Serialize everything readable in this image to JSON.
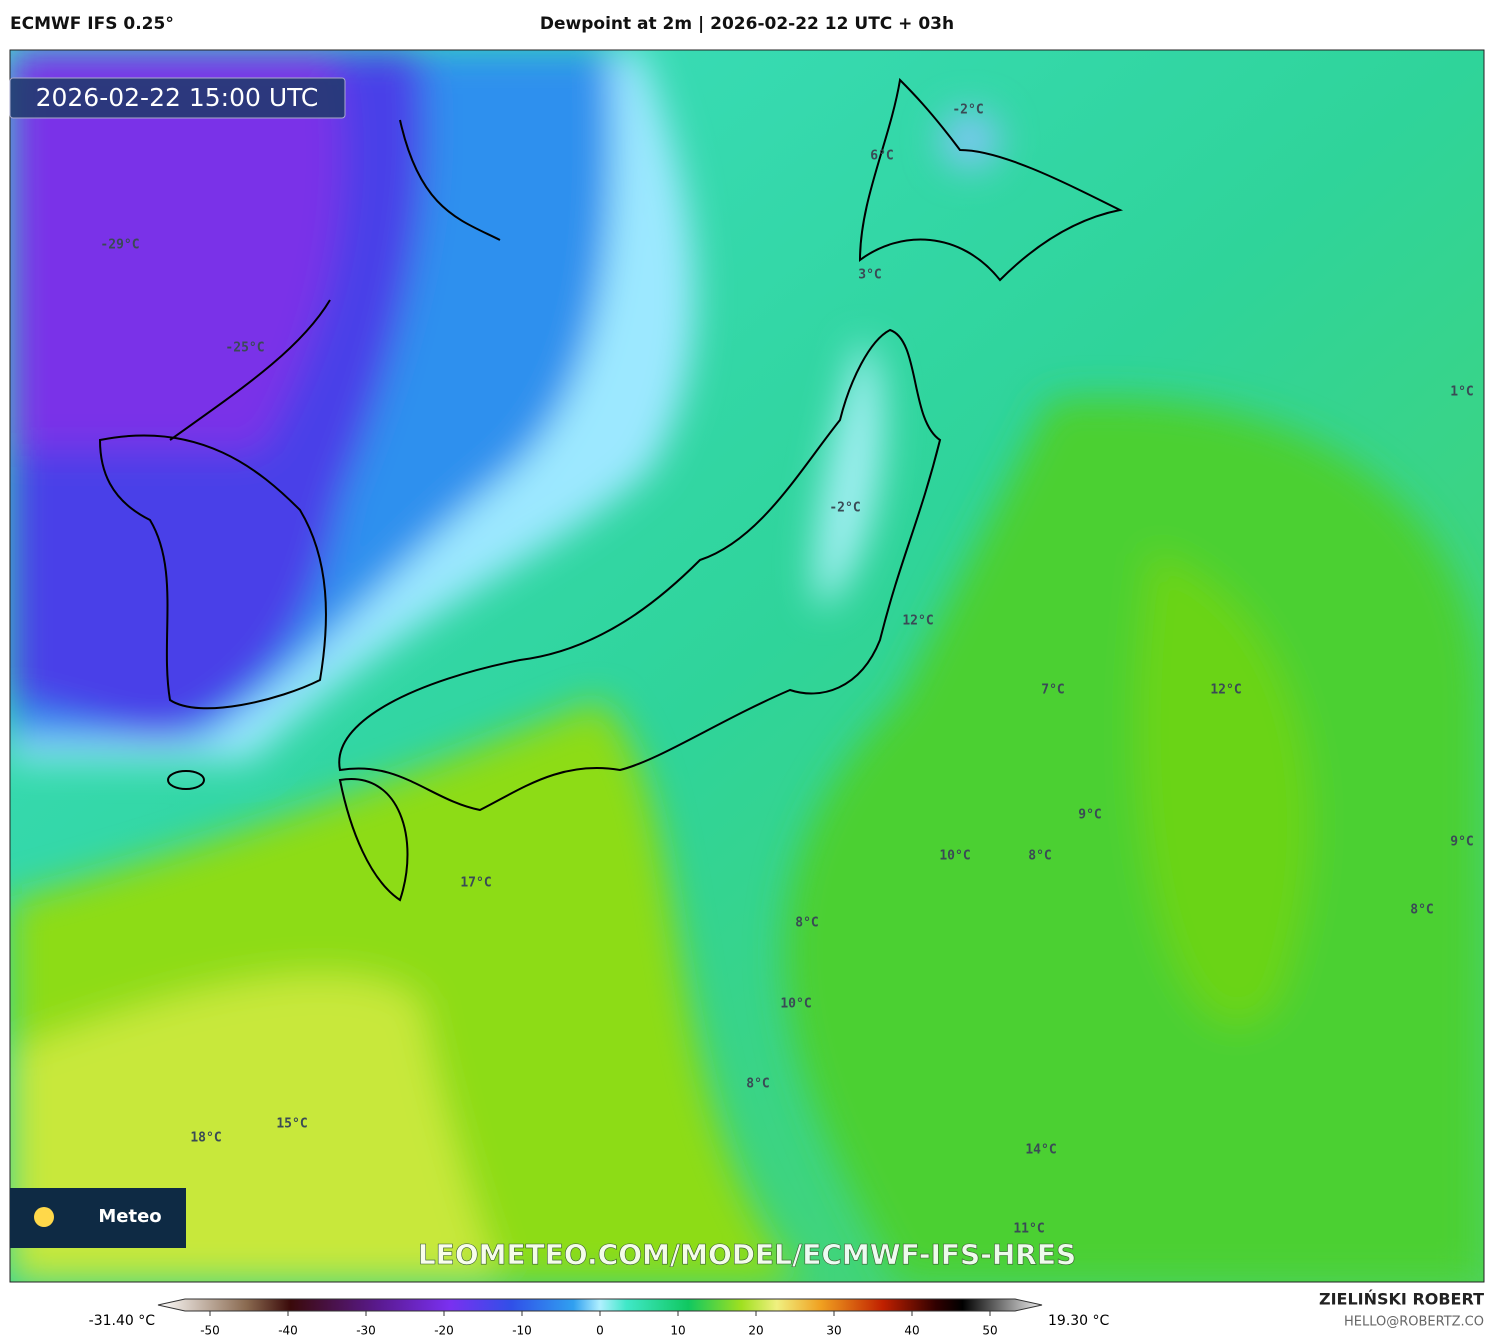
{
  "header": {
    "model": "ECMWF IFS 0.25°",
    "title": "Dewpoint at 2m | 2026-02-22 12 UTC + 03h"
  },
  "map": {
    "timestamp": "2026-02-22 15:00 UTC",
    "watermark": "LEOMETEO.COM/MODEL/ECMWF-IFS-HRES",
    "logo": "Meteo",
    "contour_labels": [
      "-2°C",
      "6°C",
      "-29°C",
      "3°C",
      "-25°C",
      "1°C",
      "-2°C",
      "12°C",
      "7°C",
      "12°C",
      "9°C",
      "9°C",
      "10°C",
      "8°C",
      "17°C",
      "8°C",
      "8°C",
      "10°C",
      "8°C",
      "18°C",
      "15°C",
      "14°C",
      "11°C"
    ]
  },
  "colorbar": {
    "min_label": "-31.40 °C",
    "max_label": "19.30 °C",
    "lim": [
      -55,
      55
    ],
    "ticks": [
      -50,
      -40,
      -30,
      -20,
      -10,
      0,
      10,
      20,
      30,
      40,
      50
    ]
  },
  "footer": {
    "author": "ZIELIŃSKI ROBERT",
    "email": "HELLO@ROBERTZ.CO"
  }
}
